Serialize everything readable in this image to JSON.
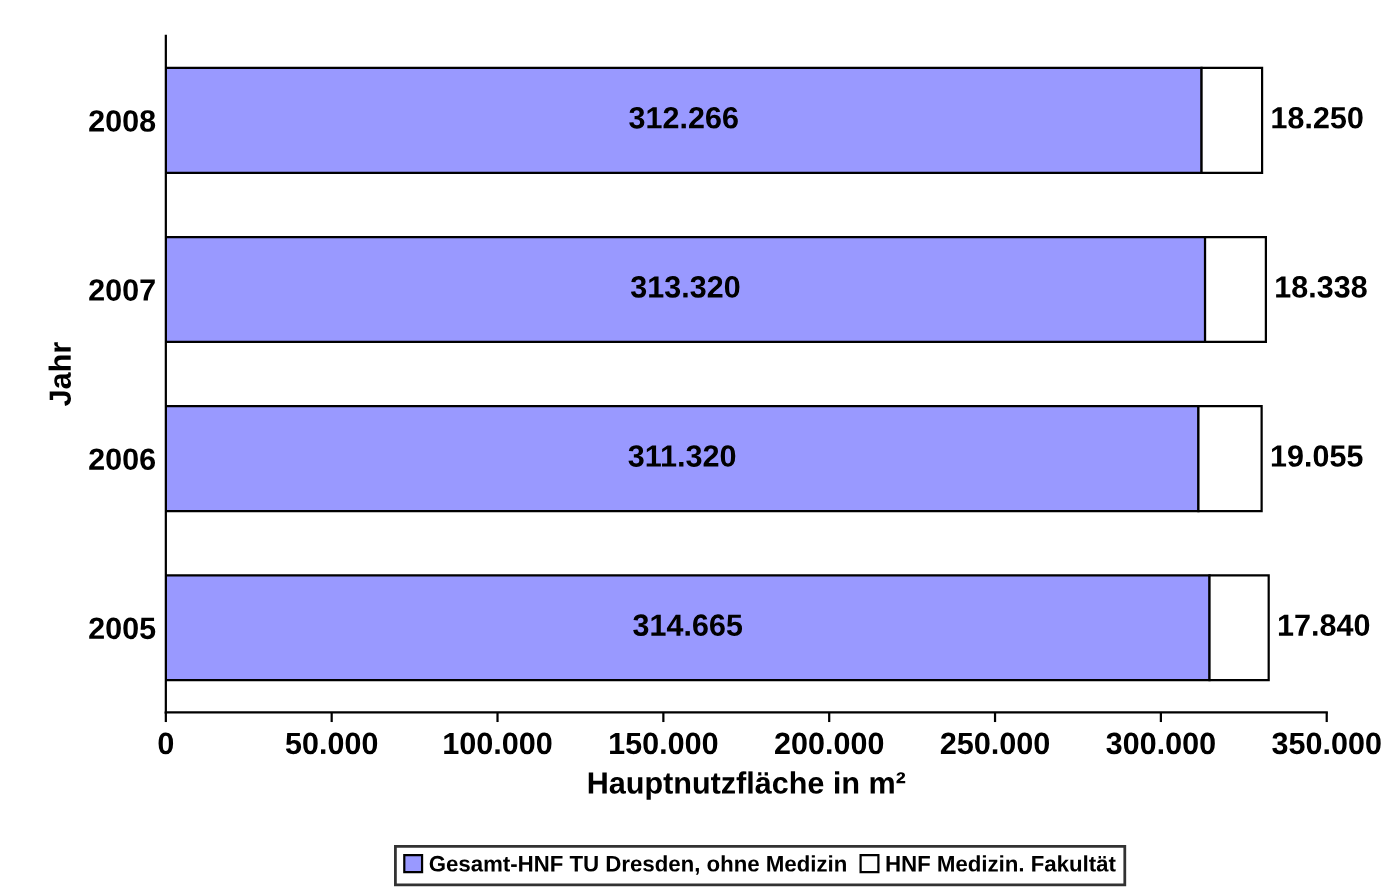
{
  "chart_data": {
    "type": "bar",
    "orientation": "horizontal",
    "stacked": true,
    "categories": [
      "2008",
      "2007",
      "2006",
      "2005"
    ],
    "series": [
      {
        "name": "Gesamt-HNF TU Dresden, ohne Medizin",
        "color": "#9999ff",
        "values": [
          312266,
          313320,
          311320,
          314665
        ],
        "value_labels": [
          "312.266",
          "313.320",
          "311.320",
          "314.665"
        ]
      },
      {
        "name": "HNF Medizin. Fakultät",
        "color": "#ffffff",
        "values": [
          18250,
          18338,
          19055,
          17840
        ],
        "value_labels": [
          "18.250",
          "18.338",
          "19.055",
          "17.840"
        ]
      }
    ],
    "xlabel": "Hauptnutzfläche in m²",
    "ylabel": "Jahr",
    "xlim": [
      0,
      350000
    ],
    "xticks": [
      0,
      {
        "value": 50000,
        "label": "50.000"
      },
      {
        "value": 100000,
        "label": "100.000"
      },
      {
        "value": 150000,
        "label": "150.000"
      },
      {
        "value": 200000,
        "label": "200.000"
      },
      {
        "value": 250000,
        "label": "250.000"
      },
      {
        "value": 300000,
        "label": "300.000"
      },
      {
        "value": 350000,
        "label": "350.000"
      }
    ],
    "grid": false,
    "legend": "bottom"
  }
}
